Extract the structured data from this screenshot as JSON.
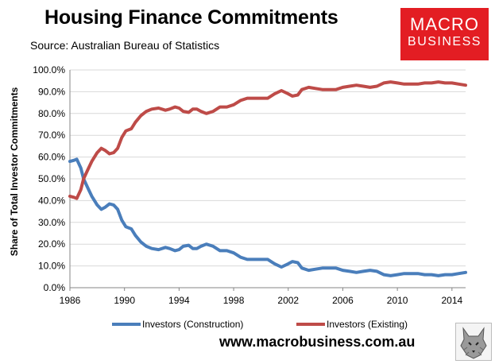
{
  "header": {
    "title": "Housing Finance Commitments",
    "source": "Source: Australian Bureau of Statistics"
  },
  "logo": {
    "line1": "MACRO",
    "line2": "BUSINESS",
    "color": "#e31d23"
  },
  "footer": {
    "website": "www.macrobusiness.com.au"
  },
  "mascot": {
    "icon": "wolf-icon"
  },
  "chart_data": {
    "type": "line",
    "title": "Housing Finance Commitments",
    "subtitle": "Source: Australian Bureau of Statistics",
    "xlabel": "",
    "ylabel": "Share of Total Investor Commitments",
    "xlim": [
      1986,
      2015
    ],
    "ylim": [
      0,
      100
    ],
    "x_ticks": [
      1986,
      1990,
      1994,
      1998,
      2002,
      2006,
      2010,
      2014
    ],
    "y_ticks": [
      "0.0%",
      "10.0%",
      "20.0%",
      "30.0%",
      "40.0%",
      "50.0%",
      "60.0%",
      "70.0%",
      "80.0%",
      "90.0%",
      "100.0%"
    ],
    "grid": "horizontal",
    "legend": "bottom",
    "x": [
      1986.0,
      1986.3,
      1986.5,
      1986.8,
      1987.0,
      1987.3,
      1987.6,
      1988.0,
      1988.3,
      1988.6,
      1988.9,
      1989.2,
      1989.5,
      1989.8,
      1990.1,
      1990.5,
      1990.8,
      1991.2,
      1991.6,
      1992.0,
      1992.5,
      1993.0,
      1993.3,
      1993.7,
      1994.0,
      1994.3,
      1994.7,
      1995.0,
      1995.3,
      1995.6,
      1996.0,
      1996.5,
      1997.0,
      1997.5,
      1998.0,
      1998.5,
      1999.0,
      1999.5,
      2000.0,
      2000.5,
      2001.0,
      2001.5,
      2002.0,
      2002.3,
      2002.7,
      2003.0,
      2003.5,
      2004.0,
      2004.5,
      2005.0,
      2005.5,
      2006.0,
      2006.5,
      2007.0,
      2007.5,
      2008.0,
      2008.5,
      2009.0,
      2009.5,
      2010.0,
      2010.5,
      2011.0,
      2011.5,
      2012.0,
      2012.5,
      2013.0,
      2013.5,
      2014.0,
      2014.5,
      2015.0
    ],
    "series": [
      {
        "name": "Investors (Construction)",
        "color": "#4a7ebb",
        "values": [
          58,
          58.5,
          59,
          55,
          50,
          46,
          42,
          38,
          36,
          37,
          38.5,
          38,
          36,
          31,
          28,
          27,
          24,
          21,
          19,
          18,
          17.5,
          18.5,
          18,
          17,
          17.5,
          19,
          19.5,
          18,
          18,
          19,
          20,
          19,
          17,
          17,
          16,
          14,
          13,
          13,
          13,
          13,
          11,
          9.5,
          11,
          12,
          11.5,
          9,
          8,
          8.5,
          9,
          9,
          9,
          8,
          7.5,
          7,
          7.5,
          8,
          7.5,
          6,
          5.5,
          6,
          6.5,
          6.5,
          6.5,
          6,
          6,
          5.5,
          6,
          6,
          6.5,
          7
        ]
      },
      {
        "name": "Investors (Existing)",
        "color": "#be4b48",
        "values": [
          42,
          41.5,
          41,
          45,
          50,
          54,
          58,
          62,
          64,
          63,
          61.5,
          62,
          64,
          69,
          72,
          73,
          76,
          79,
          81,
          82,
          82.5,
          81.5,
          82,
          83,
          82.5,
          81,
          80.5,
          82,
          82,
          81,
          80,
          81,
          83,
          83,
          84,
          86,
          87,
          87,
          87,
          87,
          89,
          90.5,
          89,
          88,
          88.5,
          91,
          92,
          91.5,
          91,
          91,
          91,
          92,
          92.5,
          93,
          92.5,
          92,
          92.5,
          94,
          94.5,
          94,
          93.5,
          93.5,
          93.5,
          94,
          94,
          94.5,
          94,
          94,
          93.5,
          93
        ]
      }
    ]
  }
}
